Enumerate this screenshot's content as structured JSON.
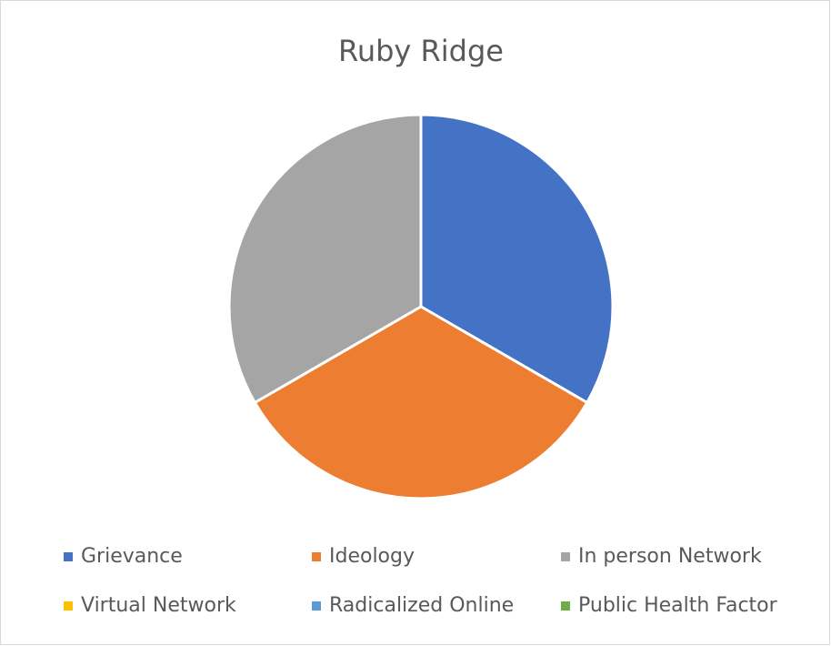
{
  "chart_data": {
    "type": "pie",
    "title": "Ruby Ridge",
    "categories": [
      "Grievance",
      "Ideology",
      "In person Network",
      "Virtual Network",
      "Radicalized Online",
      "Public Health Factor"
    ],
    "values": [
      1,
      1,
      1,
      0,
      0,
      0
    ],
    "colors": [
      "#4472c4",
      "#ed7d31",
      "#a5a5a5",
      "#ffc000",
      "#5b9bd5",
      "#70ad47"
    ],
    "legend": "bottom"
  }
}
